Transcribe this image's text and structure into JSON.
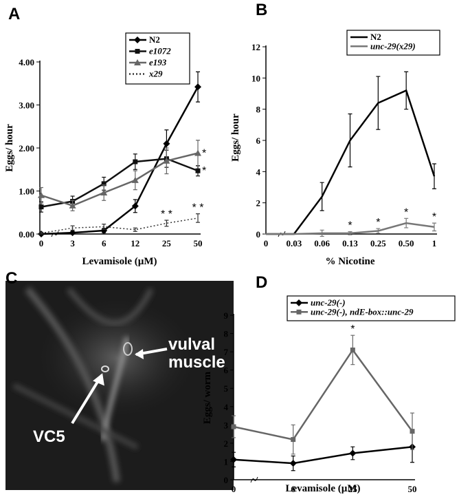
{
  "chart_data": [
    {
      "type": "line",
      "panel_label": "A",
      "y_label": "Eggs/ hour",
      "x_label": "Levamisole (µM)",
      "categories": [
        "0",
        "3",
        "6",
        "12",
        "25",
        "50"
      ],
      "ylim": [
        0,
        4
      ],
      "yticks": [
        {
          "value": 0,
          "label": "0.00"
        },
        {
          "value": 1,
          "label": "1.00"
        },
        {
          "value": 2,
          "label": "2.00"
        },
        {
          "value": 3,
          "label": "3.00"
        },
        {
          "value": 4,
          "label": "4.00"
        }
      ],
      "series": [
        {
          "name": "N2",
          "color": "#000000",
          "marker": "diamond",
          "values": [
            0.0,
            0.03,
            0.08,
            0.65,
            2.1,
            3.42
          ],
          "errors": [
            0.02,
            0.03,
            0.05,
            0.15,
            0.32,
            0.35
          ]
        },
        {
          "name": "e1072",
          "color": "#111111",
          "marker": "square",
          "values": [
            0.63,
            0.76,
            1.17,
            1.68,
            1.75,
            1.47
          ],
          "errors": [
            0.12,
            0.12,
            0.15,
            0.18,
            0.2,
            0.12
          ],
          "significance": [
            null,
            null,
            null,
            null,
            null,
            "*"
          ]
        },
        {
          "name": "e193",
          "color": "#666666",
          "marker": "triangle",
          "values": [
            0.9,
            0.66,
            0.96,
            1.25,
            1.7,
            1.88
          ],
          "errors": [
            0.18,
            0.12,
            0.18,
            0.22,
            0.3,
            0.3
          ],
          "significance": [
            null,
            null,
            null,
            null,
            null,
            "*"
          ]
        },
        {
          "name": "x29",
          "color": "#333333",
          "dash": "dotted",
          "values": [
            0.02,
            0.14,
            0.17,
            0.1,
            0.25,
            0.37
          ],
          "errors": [
            0.02,
            0.05,
            0.06,
            0.04,
            0.07,
            0.1
          ],
          "significance": [
            null,
            null,
            null,
            null,
            "* *",
            "* *"
          ]
        }
      ]
    },
    {
      "type": "line",
      "panel_label": "B",
      "y_label": "Eggs/ hour",
      "x_label": "% Nicotine",
      "categories": [
        "0",
        "0.03",
        "0.06",
        "0.13",
        "0.25",
        "0.50",
        "1"
      ],
      "ylim": [
        0,
        12
      ],
      "yticks": [
        0,
        2,
        4,
        6,
        8,
        10,
        12
      ],
      "series": [
        {
          "name": "N2",
          "color": "#000000",
          "values": [
            0,
            0,
            2.4,
            6.0,
            8.4,
            9.2,
            3.7
          ],
          "errors": [
            0,
            0,
            0.9,
            1.7,
            1.7,
            1.2,
            0.8
          ]
        },
        {
          "name": "unc-29(x29)",
          "color": "#777777",
          "values": [
            0,
            0,
            0.05,
            0.05,
            0.2,
            0.7,
            0.45
          ],
          "errors": [
            0,
            0,
            0.2,
            0.1,
            0.15,
            0.3,
            0.25
          ],
          "significance": [
            null,
            null,
            null,
            "*",
            "*",
            "*",
            "*"
          ]
        }
      ]
    },
    {
      "type": "line",
      "panel_label": "D",
      "y_label": "Eggs/ worm",
      "x_label": "Levamisole (µM)",
      "categories": [
        "0",
        "6",
        "25",
        "50"
      ],
      "ylim": [
        0,
        9
      ],
      "yticks": [
        0,
        1,
        2,
        3,
        4,
        5,
        6,
        7,
        8,
        9
      ],
      "series": [
        {
          "name": "unc-29(-)",
          "color": "#000000",
          "marker": "diamond",
          "values": [
            1.1,
            0.9,
            1.45,
            1.8
          ],
          "errors": [
            0.4,
            0.4,
            0.35,
            0.85
          ]
        },
        {
          "name": "unc-29(-), ndE-box::unc-29",
          "color": "#666666",
          "marker": "square",
          "values": [
            2.9,
            2.2,
            7.1,
            2.65
          ],
          "errors": [
            0.6,
            0.8,
            0.8,
            1.0
          ],
          "significance": [
            null,
            null,
            "*",
            null
          ]
        }
      ]
    }
  ],
  "micrograph": {
    "panel_label": "C",
    "labels": [
      "VC5",
      "vulval",
      "muscle"
    ]
  }
}
